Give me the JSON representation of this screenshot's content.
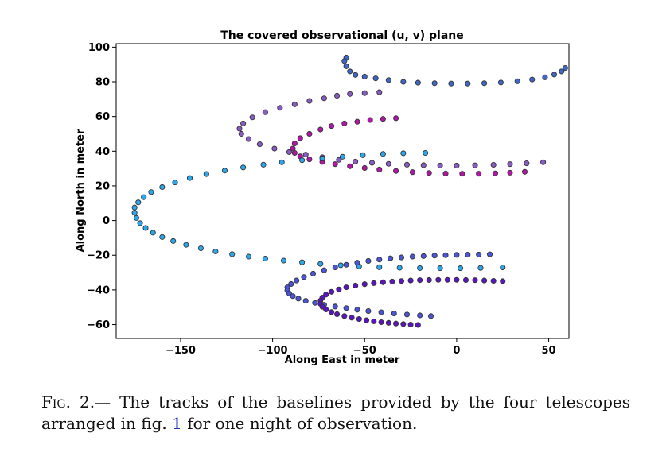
{
  "chart_data": {
    "type": "scatter",
    "title": "The covered observational (u, v) plane",
    "xlabel": "Along East in meter",
    "ylabel": "Along North in meter",
    "xlim": [
      -185,
      61
    ],
    "ylim": [
      -68,
      102
    ],
    "xticks": [
      -150,
      -100,
      -50,
      0,
      50
    ],
    "yticks": [
      -60,
      -40,
      -20,
      0,
      20,
      40,
      60,
      80,
      100
    ],
    "xtick_labels": [
      "−150",
      "−100",
      "−50",
      "0",
      "50"
    ],
    "ytick_labels": [
      "−60",
      "−40",
      "−20",
      "0",
      "20",
      "40",
      "60",
      "80",
      "100"
    ],
    "grid": false,
    "legend": "none",
    "marker_edge_color": "#333333",
    "series": [
      {
        "color": "#3d68c9",
        "x": [
          -60,
          -61,
          -60,
          -58,
          -55,
          -50,
          -44,
          -37,
          -29,
          -21,
          -12,
          -3,
          6,
          15,
          24,
          33,
          41,
          48,
          53,
          57,
          59
        ],
        "y": [
          94,
          92,
          89,
          86,
          84,
          83,
          82,
          81,
          80,
          79.5,
          79.2,
          79,
          79,
          79.2,
          79.6,
          80.3,
          81.3,
          82.6,
          84.2,
          86,
          88
        ]
      },
      {
        "color": "#8a5ac8",
        "x": [
          -42,
          -50,
          -58,
          -65,
          -72,
          -80,
          -88,
          -96,
          -104,
          -111,
          -116,
          -118,
          -117,
          -113,
          -107,
          -99,
          -91,
          -82,
          -73,
          -64,
          -55,
          -46,
          -37,
          -27,
          -18,
          -9,
          0,
          10,
          20,
          29,
          38,
          47
        ],
        "y": [
          74,
          73.5,
          73,
          72,
          70.5,
          69,
          67,
          65,
          62.5,
          59.5,
          56,
          53,
          50,
          47,
          44,
          41.5,
          39.5,
          38,
          36.5,
          35,
          34,
          33.3,
          32.7,
          32.2,
          31.9,
          31.7,
          31.7,
          31.8,
          32.1,
          32.5,
          33,
          33.6
        ]
      },
      {
        "color": "#b414a8",
        "x": [
          -33,
          -40,
          -47,
          -54,
          -61,
          -68,
          -74,
          -80,
          -85,
          -88,
          -89,
          -88,
          -85,
          -80,
          -73,
          -66,
          -58,
          -50,
          -42,
          -33,
          -24,
          -15,
          -6,
          3,
          12,
          21,
          29,
          37
        ],
        "y": [
          59,
          58.6,
          58,
          57,
          56,
          54.5,
          52.5,
          50,
          47.5,
          44.5,
          41.5,
          39,
          37,
          35.3,
          33.8,
          32.5,
          31.3,
          30.3,
          29.4,
          28.6,
          27.9,
          27.4,
          27.1,
          27,
          27,
          27.2,
          27.6,
          28.1
        ]
      },
      {
        "color": "#29a8f0",
        "x": [
          -17,
          -29,
          -40,
          -51,
          -62,
          -73,
          -84,
          -95,
          -105,
          -116,
          -126,
          -136,
          -145,
          -153,
          -160,
          -166,
          -170,
          -173,
          -175,
          -175,
          -174,
          -172,
          -169,
          -165,
          -160,
          -154,
          -147,
          -139,
          -131,
          -122,
          -113,
          -104,
          -94,
          -84,
          -74,
          -63,
          -53,
          -42,
          -31,
          -20,
          -9,
          2,
          13,
          25
        ],
        "y": [
          39,
          38.8,
          38.4,
          37.7,
          36.8,
          35.8,
          34.8,
          33.6,
          32.2,
          30.6,
          28.8,
          26.8,
          24.5,
          22,
          19.3,
          16.4,
          13.5,
          10.5,
          7.5,
          4.5,
          1.5,
          -1.5,
          -4.3,
          -7,
          -9.5,
          -11.8,
          -14,
          -16,
          -17.8,
          -19.4,
          -20.8,
          -22,
          -23.1,
          -24.1,
          -25,
          -25.8,
          -26.4,
          -26.9,
          -27.2,
          -27.4,
          -27.5,
          -27.5,
          -27.3,
          -27
        ]
      },
      {
        "color": "#4a55dc",
        "x": [
          18,
          12,
          6,
          0,
          -6,
          -12,
          -18,
          -24,
          -30,
          -36,
          -42,
          -48,
          -54,
          -60,
          -66,
          -72,
          -78,
          -83,
          -87,
          -90,
          -92,
          -92,
          -91,
          -89,
          -86,
          -82,
          -77,
          -72,
          -66,
          -60,
          -54,
          -48,
          -41,
          -34,
          -27,
          -20,
          -14
        ],
        "y": [
          -19.5,
          -19.6,
          -19.7,
          -19.8,
          -20,
          -20.2,
          -20.5,
          -20.8,
          -21.3,
          -21.8,
          -22.5,
          -23.3,
          -24.3,
          -25.5,
          -27,
          -28.7,
          -30.6,
          -32.6,
          -34.6,
          -36.6,
          -38.5,
          -40.3,
          -42,
          -43.6,
          -45,
          -46.3,
          -47.5,
          -48.6,
          -49.6,
          -50.5,
          -51.4,
          -52.2,
          -52.9,
          -53.6,
          -54.2,
          -54.7,
          -55.1
        ]
      },
      {
        "color": "#5a14c4",
        "x": [
          25,
          20,
          15,
          10,
          5,
          0,
          -5,
          -10,
          -15,
          -20,
          -25,
          -30,
          -35,
          -40,
          -45,
          -50,
          -55,
          -60,
          -64,
          -68,
          -71,
          -73,
          -74,
          -74,
          -73,
          -71,
          -68,
          -65,
          -61,
          -57,
          -53,
          -49,
          -45,
          -41,
          -37,
          -33,
          -29,
          -25,
          -21
        ],
        "y": [
          -35,
          -34.8,
          -34.6,
          -34.4,
          -34.3,
          -34.2,
          -34.2,
          -34.2,
          -34.3,
          -34.4,
          -34.6,
          -34.9,
          -35.2,
          -35.6,
          -36.1,
          -36.7,
          -37.5,
          -38.5,
          -39.7,
          -41.1,
          -42.7,
          -44.4,
          -46.2,
          -48,
          -49.7,
          -51.3,
          -52.8,
          -54,
          -55.1,
          -56,
          -56.8,
          -57.5,
          -58.1,
          -58.6,
          -59,
          -59.4,
          -59.7,
          -60,
          -60.2
        ]
      }
    ]
  },
  "caption": {
    "label": "Fig. 2.",
    "dash": "—",
    "text_before_ref": " The tracks of the baselines provided by the four telescopes arranged in fig. ",
    "ref": "1",
    "text_after_ref": " for one night of observation."
  }
}
